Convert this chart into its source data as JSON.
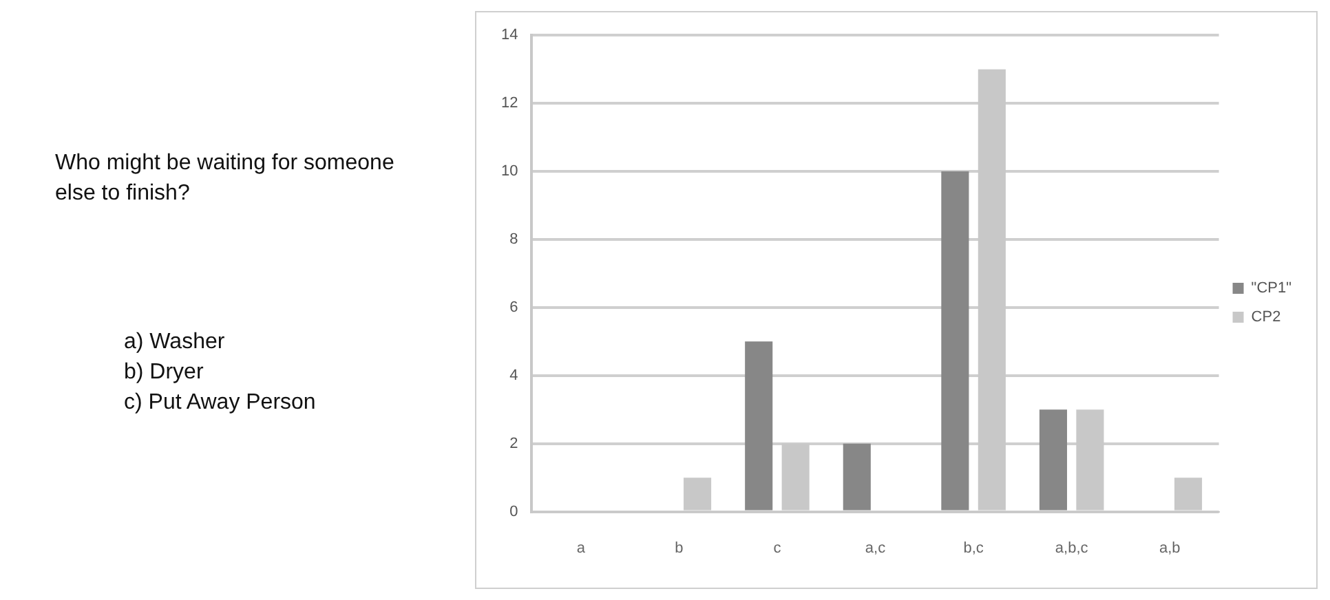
{
  "chart_data": {
    "type": "bar",
    "title": "Who might be waiting for someone else to finish?",
    "annotations": [
      "a) Washer",
      "b) Dryer",
      "c) Put Away Person"
    ],
    "categories": [
      "a",
      "b",
      "c",
      "a,c",
      "b,c",
      "a,b,c",
      "a,b"
    ],
    "series": [
      {
        "name": "\"CP1\"",
        "color": "#878787",
        "values": [
          0,
          0,
          5,
          2,
          10,
          3,
          0
        ]
      },
      {
        "name": "CP2",
        "color": "#c8c8c8",
        "values": [
          0,
          1,
          2,
          0,
          13,
          3,
          1
        ]
      }
    ],
    "ylim": [
      0,
      14
    ],
    "yticks": [
      0,
      2,
      4,
      6,
      8,
      10,
      12,
      14
    ],
    "grid": "y",
    "legend": "right"
  }
}
